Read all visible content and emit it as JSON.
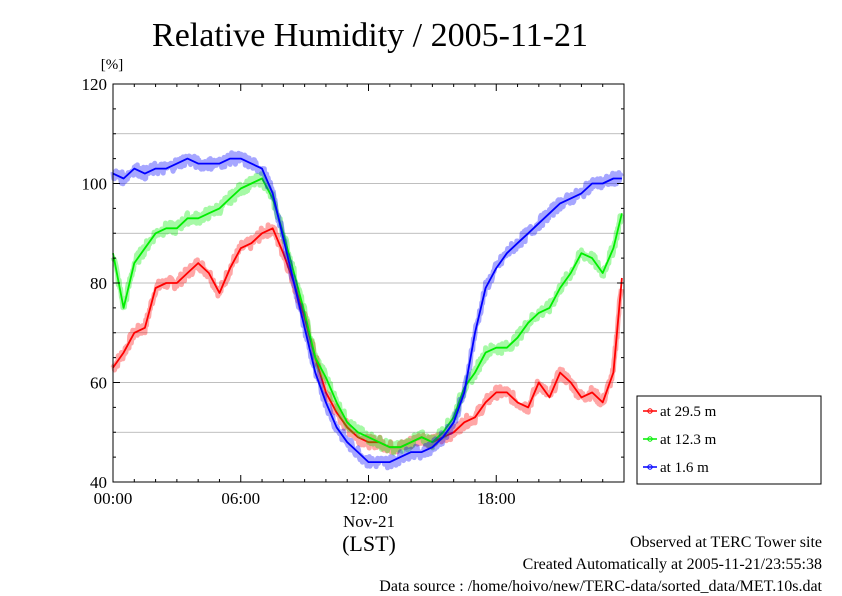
{
  "chart_data": {
    "type": "line",
    "title": "Relative Humidity / 2005-11-21",
    "ylabel": "[%]",
    "xlabel": "(LST)",
    "date_label": "Nov-21",
    "ylim": [
      40,
      120
    ],
    "xlim": [
      0,
      24
    ],
    "y_ticks": [
      "40",
      "60",
      "80",
      "100",
      "120"
    ],
    "x_ticks": [
      "00:00",
      "06:00",
      "12:00",
      "18:00"
    ],
    "grid": true,
    "legend_position": "right",
    "x": [
      0,
      0.5,
      1,
      1.5,
      2,
      2.5,
      3,
      3.5,
      4,
      4.5,
      5,
      5.5,
      6,
      6.5,
      7,
      7.5,
      8,
      8.5,
      9,
      9.5,
      10,
      10.5,
      11,
      11.5,
      12,
      12.5,
      13,
      13.5,
      14,
      14.5,
      15,
      15.5,
      16,
      16.5,
      17,
      17.5,
      18,
      18.5,
      19,
      19.5,
      20,
      20.5,
      21,
      21.5,
      22,
      22.5,
      23,
      23.5,
      23.9
    ],
    "series": [
      {
        "name": "at 29.5 m",
        "color": "#ff0000",
        "values": [
          63,
          66,
          70,
          71,
          79,
          80,
          80,
          82,
          84,
          82,
          78,
          83,
          87,
          88,
          90,
          91,
          86,
          80,
          73,
          65,
          58,
          54,
          51,
          49,
          48,
          48,
          47,
          47,
          48,
          49,
          48,
          49,
          50,
          52,
          53,
          56,
          58,
          58,
          56,
          55,
          60,
          57,
          62,
          60,
          57,
          58,
          56,
          62,
          81
        ]
      },
      {
        "name": "at 12.3 m",
        "color": "#00ee00",
        "values": [
          86,
          75,
          84,
          87,
          90,
          91,
          91,
          93,
          93,
          94,
          95,
          97,
          99,
          100,
          101,
          97,
          90,
          82,
          74,
          65,
          61,
          56,
          52,
          50,
          49,
          48,
          47,
          47,
          48,
          49,
          48,
          50,
          53,
          59,
          62,
          66,
          67,
          67,
          69,
          72,
          74,
          75,
          79,
          82,
          86,
          85,
          82,
          87,
          94
        ]
      },
      {
        "name": "at 1.6 m",
        "color": "#0000ff",
        "values": [
          102,
          101,
          103,
          102,
          103,
          103,
          104,
          105,
          104,
          104,
          104,
          105,
          105,
          104,
          103,
          98,
          89,
          80,
          71,
          62,
          56,
          51,
          48,
          46,
          44,
          44,
          44,
          45,
          46,
          46,
          47,
          49,
          52,
          58,
          70,
          79,
          83,
          86,
          88,
          90,
          92,
          94,
          96,
          97,
          98,
          100,
          100,
          101,
          101
        ]
      }
    ]
  },
  "footer": {
    "line1": "Observed at TERC Tower site",
    "line2": "Created Automatically at 2005-11-21/23:55:38",
    "line3": "Data source : /home/hoivo/new/TERC-data/sorted_data/MET.10s.dat"
  }
}
